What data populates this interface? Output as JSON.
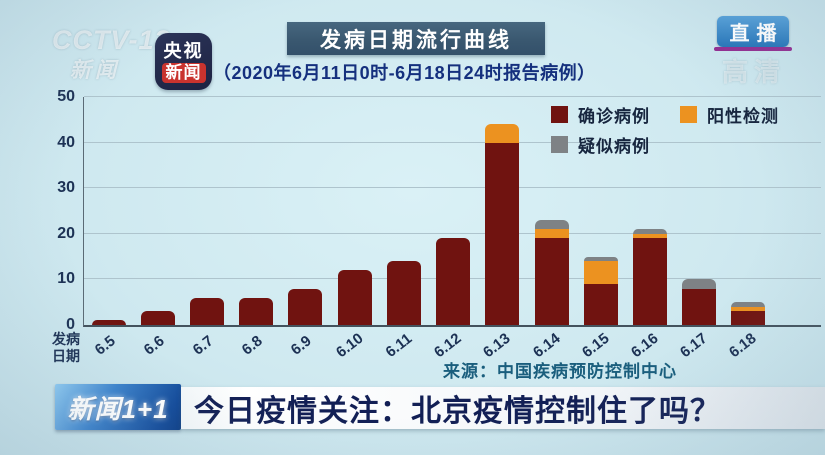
{
  "station": {
    "watermark_line1": "CCTV-13",
    "watermark_line2": "新闻",
    "app_badge_line1": "央视",
    "app_badge_line2": "新闻",
    "live_badge": "直播",
    "hd_watermark": "高清"
  },
  "header": {
    "title": "发病日期流行曲线",
    "subtitle": "（2020年6月11日0时-6月18日24时报告病例）"
  },
  "chart_data": {
    "type": "bar",
    "stacked": true,
    "title": "发病日期流行曲线",
    "categories": [
      "6.5",
      "6.6",
      "6.7",
      "6.8",
      "6.9",
      "6.10",
      "6.11",
      "6.12",
      "6.13",
      "6.14",
      "6.15",
      "6.16",
      "6.17",
      "6.18"
    ],
    "series": [
      {
        "name": "确诊病例",
        "color": "#701310",
        "values": [
          1,
          3,
          6,
          6,
          8,
          12,
          14,
          19,
          40,
          19,
          9,
          19,
          8,
          3
        ]
      },
      {
        "name": "阳性检测",
        "color": "#ec9220",
        "values": [
          0,
          0,
          0,
          0,
          0,
          0,
          0,
          0,
          4,
          2,
          5,
          1,
          0,
          1
        ]
      },
      {
        "name": "疑似病例",
        "color": "#7e8285",
        "values": [
          0,
          0,
          0,
          0,
          0,
          0,
          0,
          0,
          0,
          2,
          1,
          1,
          2,
          1
        ]
      }
    ],
    "xlabel": "发病日期",
    "x_axis_title_lines": [
      "发病",
      "日期"
    ],
    "ylabel": "",
    "ylim": [
      0,
      50
    ],
    "yticks": [
      0,
      10,
      20,
      30,
      40,
      50
    ],
    "grid": true,
    "legend_position": "top-right",
    "source": "来源：中国疾病预防控制中心"
  },
  "ticker": {
    "program_logo": "新闻1+1",
    "headline": "今日疫情关注：北京疫情控制住了吗？"
  },
  "colors": {
    "background": "#cfe9f0",
    "title_banner": "#3a5870",
    "headline_text": "#121f55",
    "live_badge_blue": "#2574b8",
    "live_underline_magenta": "#922c90"
  }
}
